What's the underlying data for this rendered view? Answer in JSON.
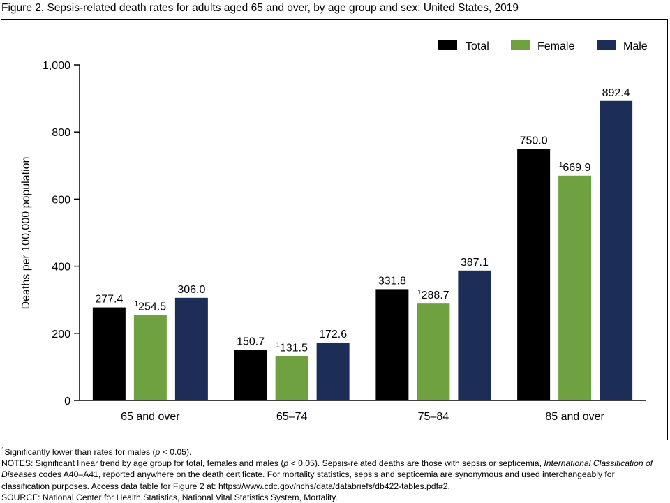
{
  "figure_title": "Figure 2. Sepsis-related death rates for adults aged 65 and over, by age group and sex: United States, 2019",
  "colors": {
    "Total": "#000000",
    "Female": "#6fa140",
    "Male": "#1c2d57"
  },
  "chart_data": {
    "type": "bar",
    "title": "",
    "xlabel": "",
    "ylabel": "Deaths per 100,000 population",
    "ylim": [
      0,
      1000
    ],
    "yticks": [
      0,
      200,
      400,
      600,
      800,
      1000
    ],
    "ytick_labels": [
      "0",
      "200",
      "400",
      "600",
      "800",
      "1,000"
    ],
    "categories": [
      "65 and over",
      "65–74",
      "75–84",
      "85 and over"
    ],
    "legend": "top-right",
    "grid": false,
    "series": [
      {
        "name": "Total",
        "values": [
          277.4,
          150.7,
          331.8,
          750.0
        ],
        "labels": [
          "277.4",
          "150.7",
          "331.8",
          "750.0"
        ],
        "marks": [
          "",
          "",
          "",
          ""
        ]
      },
      {
        "name": "Female",
        "values": [
          254.5,
          131.5,
          288.7,
          669.9
        ],
        "labels": [
          "254.5",
          "131.5",
          "288.7",
          "669.9"
        ],
        "marks": [
          "1",
          "1",
          "1",
          "1"
        ]
      },
      {
        "name": "Male",
        "values": [
          306.0,
          172.6,
          387.1,
          892.4
        ],
        "labels": [
          "306.0",
          "172.6",
          "387.1",
          "892.4"
        ],
        "marks": [
          "",
          "",
          "",
          ""
        ]
      }
    ]
  },
  "footnote": {
    "mark": "1",
    "text_before": "Significantly lower than rates for males (",
    "italic": "p",
    "text_after": " < 0.05)."
  },
  "notes": {
    "part1": "NOTES: Significant linear trend by age group for total, females and males (",
    "p_italic": "p",
    "part2": " < 0.05). Sepsis-related deaths are those with sepsis or septicemia, ",
    "icd_italic": "International Classification of Diseases",
    "part3": " codes A40–A41, reported anywhere on the death certificate. For mortality statistics, sepsis and septicemia are synonymous and used interchangeably for classification purposes. Access data table for Figure 2 at: https://www.cdc.gov/nchs/data/databriefs/db422-tables.pdf#2."
  },
  "source": "SOURCE: National Center for Health Statistics, National Vital Statistics System, Mortality."
}
